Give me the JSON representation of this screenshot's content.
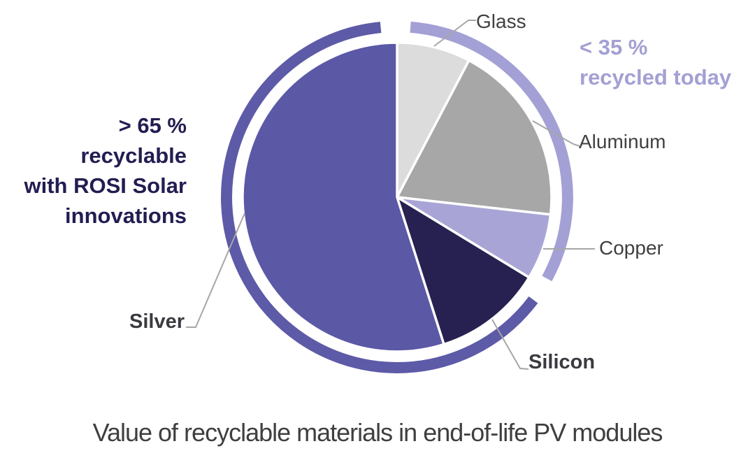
{
  "page": {
    "background": "#FFFFFF"
  },
  "chart_data": {
    "type": "pie",
    "title": "Value of recyclable materials in end-of-life PV modules",
    "title_color": "#3F3F3F",
    "start_angle_deg": 0,
    "direction": "clockwise",
    "slices": [
      {
        "label": "Glass",
        "value_pct": 7.7,
        "color": "#DCDCDC",
        "group": "recycled_today"
      },
      {
        "label": "Aluminum",
        "value_pct": 19.1,
        "color": "#A7A7A7",
        "group": "recycled_today"
      },
      {
        "label": "Copper",
        "value_pct": 6.9,
        "color": "#A8A5D6",
        "group": "recycled_today"
      },
      {
        "label": "Silicon",
        "value_pct": 11.4,
        "color": "#262150",
        "group": "rosi_recyclable"
      },
      {
        "label": "Silver",
        "value_pct": 54.9,
        "color": "#5B58A6",
        "group": "rosi_recyclable"
      }
    ],
    "rings": [
      {
        "name": "recycled-today-arc",
        "color": "#A3A0D5",
        "start_deg": 4.5,
        "end_deg": 118.5
      },
      {
        "name": "rosi-recyclable-arc",
        "color": "#5D5AA7",
        "start_deg": 127.0,
        "end_deg": 354.5
      }
    ],
    "annotations": {
      "left": {
        "lines": [
          "> 65 %",
          "recyclable",
          "with ROSI Solar",
          "innovations"
        ],
        "color": "#221D51"
      },
      "right": {
        "lines": [
          "< 35 %",
          "recycled today"
        ],
        "color": "#A3A0D3"
      }
    },
    "slice_label_color_regular": "#404040",
    "slice_label_color_bold": "#3A3A40",
    "leader_line_color": "#A6A6A6",
    "slice_separator_color": "#FFFFFF",
    "legend_position": "none",
    "grid": "off"
  }
}
